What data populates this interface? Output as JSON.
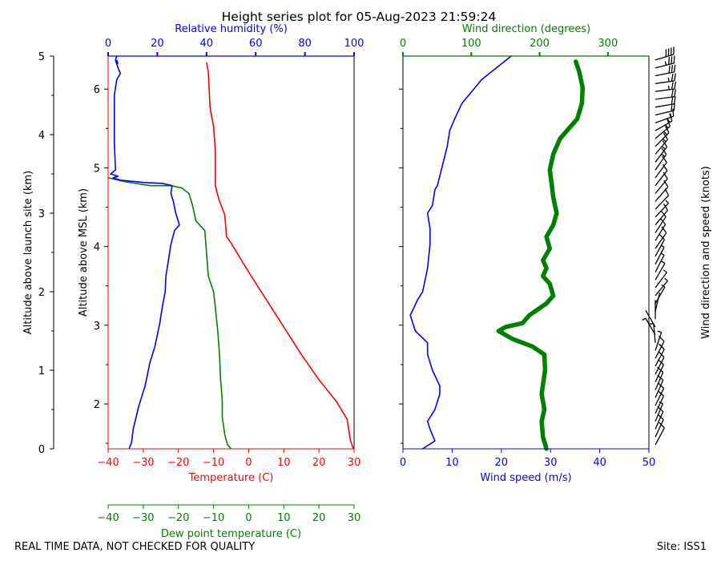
{
  "title": "Height series plot for 05-Aug-2023 21:59:24",
  "footer_left": "REAL TIME DATA, NOT CHECKED FOR QUALITY",
  "footer_right": "Site: ISS1",
  "colors": {
    "red": "#ff0000",
    "blue": "#0000ff",
    "green": "#008000",
    "black": "#000000"
  },
  "chart_data": [
    {
      "type": "line",
      "name": "thermo-panel",
      "axes": {
        "x_bottom": {
          "label": "Temperature (C)",
          "range": [
            -40,
            30
          ],
          "ticks": [
            -40,
            -30,
            -20,
            -10,
            0,
            10,
            20,
            30
          ],
          "color": "#ff0000"
        },
        "x_extra": {
          "label": "Dew point temperature (C)",
          "range": [
            -40,
            30
          ],
          "ticks": [
            -40,
            -30,
            -20,
            -10,
            0,
            10,
            20,
            30
          ],
          "color": "#008000"
        },
        "x_top": {
          "label": "Relative humidity (%)",
          "range": [
            0,
            100
          ],
          "ticks": [
            0,
            20,
            40,
            60,
            80,
            100
          ],
          "color": "#0000ff"
        },
        "y_left": {
          "label": "Altitude above launch site (km)",
          "range": [
            0,
            5
          ],
          "ticks": [
            0,
            1,
            2,
            3,
            4,
            5
          ]
        },
        "y_inner": {
          "label": "Altitude above MSL (km)",
          "range": [
            1.43,
            6.42
          ],
          "ticks": [
            2,
            3,
            4,
            5,
            6
          ]
        }
      },
      "series": [
        {
          "name": "Temperature",
          "axis": "x_bottom",
          "color": "#ff0000",
          "points": [
            [
              29.8,
              0
            ],
            [
              29,
              0.1
            ],
            [
              28,
              0.38
            ],
            [
              25,
              0.6
            ],
            [
              20,
              0.88
            ],
            [
              15,
              1.2
            ],
            [
              10,
              1.55
            ],
            [
              5,
              1.9
            ],
            [
              0,
              2.25
            ],
            [
              -5,
              2.62
            ],
            [
              -6.3,
              2.7
            ],
            [
              -6.8,
              2.98
            ],
            [
              -8.5,
              3.18
            ],
            [
              -9.5,
              3.35
            ],
            [
              -9.5,
              3.8
            ],
            [
              -10,
              4.1
            ],
            [
              -11,
              4.35
            ],
            [
              -11.5,
              4.8
            ],
            [
              -12,
              4.92
            ]
          ]
        },
        {
          "name": "Dew point",
          "axis": "x_extra",
          "color": "#008000",
          "points": [
            [
              -5,
              0
            ],
            [
              -6,
              0.05
            ],
            [
              -6.8,
              0.18
            ],
            [
              -7.5,
              0.4
            ],
            [
              -7.5,
              0.6
            ],
            [
              -8,
              0.9
            ],
            [
              -8.3,
              1.2
            ],
            [
              -8.8,
              1.5
            ],
            [
              -9.5,
              1.8
            ],
            [
              -10,
              2.0
            ],
            [
              -11.5,
              2.2
            ],
            [
              -12,
              2.5
            ],
            [
              -12.5,
              2.78
            ],
            [
              -15,
              2.9
            ],
            [
              -16,
              3.1
            ],
            [
              -17,
              3.25
            ],
            [
              -19,
              3.32
            ],
            [
              -22,
              3.35
            ],
            [
              -28,
              3.35
            ],
            [
              -35,
              3.4
            ],
            [
              -40,
              3.45
            ]
          ]
        },
        {
          "name": "Relative humidity",
          "axis": "x_top",
          "color": "#0000ff",
          "points": [
            [
              8.5,
              0
            ],
            [
              9.5,
              0.08
            ],
            [
              10.2,
              0.25
            ],
            [
              12.5,
              0.55
            ],
            [
              15,
              0.8
            ],
            [
              17,
              1.1
            ],
            [
              19,
              1.3
            ],
            [
              21,
              1.6
            ],
            [
              22,
              1.8
            ],
            [
              23.2,
              2.0
            ],
            [
              23.5,
              2.2
            ],
            [
              24,
              2.3
            ],
            [
              25.5,
              2.6
            ],
            [
              27,
              2.78
            ],
            [
              29,
              2.85
            ],
            [
              27.5,
              3.0
            ],
            [
              26.5,
              3.15
            ],
            [
              25.5,
              3.25
            ],
            [
              26,
              3.35
            ],
            [
              22,
              3.38
            ],
            [
              15,
              3.39
            ],
            [
              5,
              3.42
            ],
            [
              2,
              3.45
            ],
            [
              4,
              3.47
            ],
            [
              1,
              3.5
            ],
            [
              3,
              3.55
            ],
            [
              2.5,
              3.9
            ],
            [
              2.5,
              4.5
            ],
            [
              3,
              4.6
            ],
            [
              3.5,
              4.7
            ],
            [
              5,
              4.78
            ],
            [
              4,
              4.85
            ],
            [
              3,
              4.95
            ],
            [
              3.5,
              5.0
            ]
          ]
        },
        {
          "name": "RH fragment",
          "axis": "x_top",
          "color": "#0000ff",
          "points": [
            [
              4,
              4.9
            ],
            [
              3.5,
              4.95
            ]
          ]
        }
      ]
    },
    {
      "type": "line",
      "name": "wind-panel",
      "axes": {
        "x_bottom": {
          "label": "Wind speed (m/s)",
          "range": [
            0,
            50
          ],
          "ticks": [
            0,
            10,
            20,
            30,
            40,
            50
          ],
          "color": "#0000ff"
        },
        "x_top": {
          "label": "Wind direction (degrees)",
          "range": [
            0,
            360
          ],
          "ticks": [
            0,
            100,
            200,
            300
          ],
          "color": "#008000"
        },
        "y_right": {
          "label": "Wind direction and speed (knots)"
        }
      },
      "series": [
        {
          "name": "Wind speed",
          "axis": "x_bottom",
          "color": "#0000ff",
          "points": [
            [
              4,
              0
            ],
            [
              6.5,
              0.1
            ],
            [
              5.5,
              0.25
            ],
            [
              5,
              0.35
            ],
            [
              6.5,
              0.5
            ],
            [
              7.5,
              0.7
            ],
            [
              7.5,
              0.8
            ],
            [
              6,
              1.0
            ],
            [
              5.5,
              1.1
            ],
            [
              5,
              1.2
            ],
            [
              5,
              1.35
            ],
            [
              2.5,
              1.5
            ],
            [
              1.5,
              1.7
            ],
            [
              3,
              1.9
            ],
            [
              4,
              2.0
            ],
            [
              5,
              2.3
            ],
            [
              5.5,
              2.6
            ],
            [
              5.5,
              2.8
            ],
            [
              5,
              3.0
            ],
            [
              6,
              3.1
            ],
            [
              6.5,
              3.3
            ],
            [
              7,
              3.35
            ],
            [
              8,
              3.6
            ],
            [
              9,
              3.85
            ],
            [
              9.5,
              4.05
            ],
            [
              10.5,
              4.2
            ],
            [
              12,
              4.4
            ],
            [
              14,
              4.55
            ],
            [
              16,
              4.7
            ],
            [
              20,
              4.9
            ],
            [
              22,
              5.0
            ]
          ]
        },
        {
          "name": "Wind direction",
          "axis": "x_top",
          "color": "#008000",
          "points": [
            [
              210,
              0
            ],
            [
              205,
              0.15
            ],
            [
              203,
              0.35
            ],
            [
              207,
              0.5
            ],
            [
              203,
              0.7
            ],
            [
              208,
              1.0
            ],
            [
              207,
              1.2
            ],
            [
              190,
              1.3
            ],
            [
              160,
              1.4
            ],
            [
              140,
              1.5
            ],
            [
              150,
              1.55
            ],
            [
              175,
              1.6
            ],
            [
              185,
              1.7
            ],
            [
              210,
              1.85
            ],
            [
              220,
              1.95
            ],
            [
              215,
              2.1
            ],
            [
              205,
              2.2
            ],
            [
              210,
              2.3
            ],
            [
              205,
              2.4
            ],
            [
              215,
              2.55
            ],
            [
              210,
              2.7
            ],
            [
              220,
              2.85
            ],
            [
              225,
              3.0
            ],
            [
              220,
              3.2
            ],
            [
              218,
              3.35
            ],
            [
              215,
              3.55
            ],
            [
              220,
              3.75
            ],
            [
              230,
              3.95
            ],
            [
              240,
              4.05
            ],
            [
              255,
              4.2
            ],
            [
              262,
              4.4
            ],
            [
              263,
              4.6
            ],
            [
              258,
              4.8
            ],
            [
              253,
              4.93
            ]
          ]
        }
      ]
    }
  ]
}
